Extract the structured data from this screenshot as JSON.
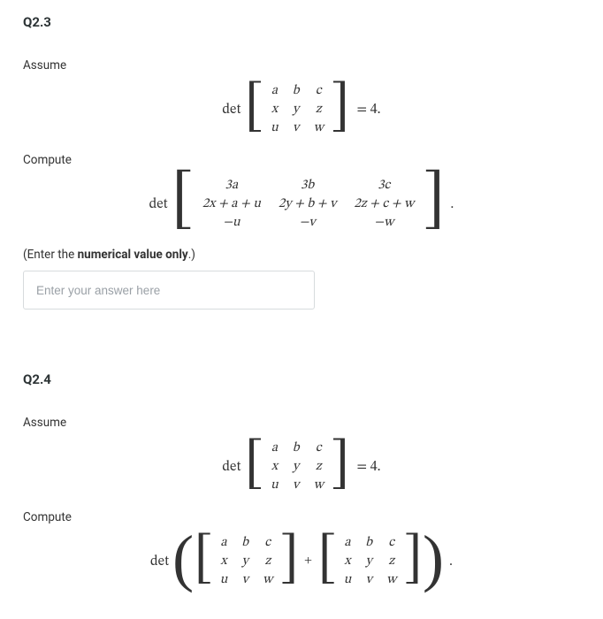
{
  "q23": {
    "header": "Q2.3",
    "underline_color": "#ffffff",
    "assume_label": "Assume",
    "compute_label": "Compute",
    "instruction_prefix": "(Enter the ",
    "instruction_bold": "numerical value only",
    "instruction_suffix": ".)",
    "placeholder": "Enter your answer here",
    "det_label": "det",
    "rhs": "= 4.",
    "matrix_given": {
      "rows": [
        [
          "a",
          "b",
          "c"
        ],
        [
          "x",
          "y",
          "z"
        ],
        [
          "u",
          "v",
          "w"
        ]
      ]
    },
    "matrix_compute": {
      "rows": [
        [
          "3a",
          "3b",
          "3c"
        ],
        [
          "2x + a + u",
          "2y + b + v",
          "2z + c + w"
        ],
        [
          "−u",
          "−v",
          "−w"
        ]
      ]
    },
    "period": "."
  },
  "q24": {
    "header": "Q2.4",
    "underline_color": "#ffffff",
    "assume_label": "Assume",
    "compute_label": "Compute",
    "det_label": "det",
    "rhs": "= 4.",
    "matrix_given": {
      "rows": [
        [
          "a",
          "b",
          "c"
        ],
        [
          "x",
          "y",
          "z"
        ],
        [
          "u",
          "v",
          "w"
        ]
      ]
    },
    "matrix_left": {
      "rows": [
        [
          "a",
          "b",
          "c"
        ],
        [
          "x",
          "y",
          "z"
        ],
        [
          "u",
          "v",
          "w"
        ]
      ]
    },
    "matrix_right": {
      "rows": [
        [
          "a",
          "b",
          "c"
        ],
        [
          "x",
          "y",
          "z"
        ],
        [
          "u",
          "v",
          "w"
        ]
      ]
    },
    "plus": "+",
    "period": "."
  }
}
